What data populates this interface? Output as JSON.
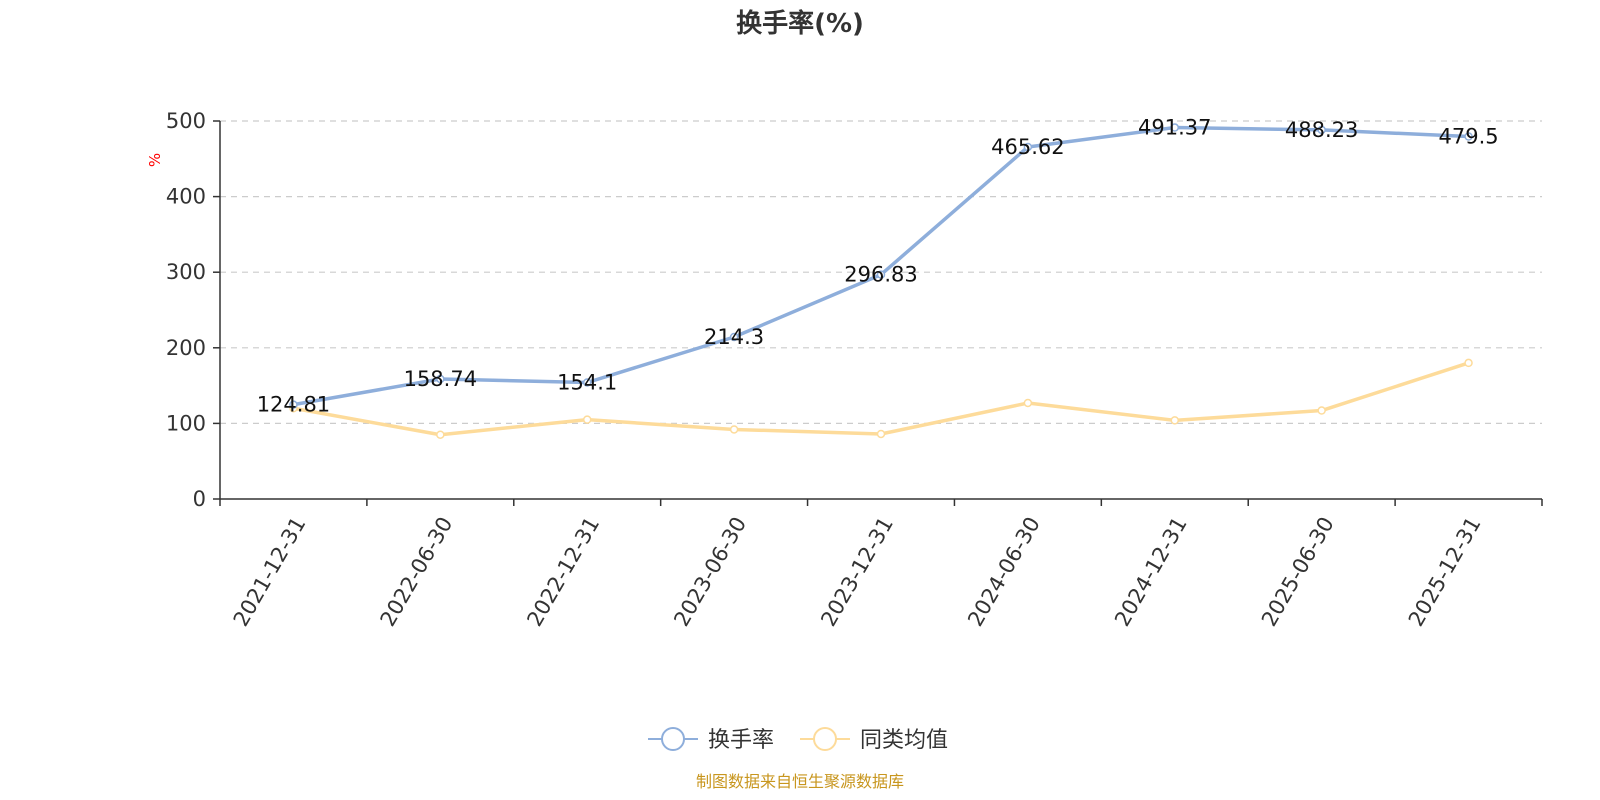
{
  "chart_data": {
    "type": "line",
    "title": "换手率(%)",
    "ylabel": "%",
    "xlabel": "",
    "ylim": [
      0,
      500
    ],
    "yticks": [
      0,
      100,
      200,
      300,
      400,
      500
    ],
    "categories": [
      "2021-12-31",
      "2022-06-30",
      "2022-12-31",
      "2023-06-30",
      "2023-12-31",
      "2024-06-30",
      "2024-12-31",
      "2025-06-30",
      "2025-12-31"
    ],
    "series": [
      {
        "name": "换手率",
        "color": "#8eaedb",
        "values": [
          124.81,
          158.74,
          154.1,
          214.3,
          296.83,
          465.62,
          491.37,
          488.23,
          479.5
        ],
        "labels": [
          "124.81",
          "158.74",
          "154.1",
          "214.3",
          "296.83",
          "465.62",
          "491.37",
          "488.23",
          "479.5"
        ]
      },
      {
        "name": "同类均值",
        "color": "#fddb9a",
        "values": [
          120,
          85,
          105,
          92,
          86,
          127,
          104,
          117,
          180
        ]
      }
    ],
    "grid": true,
    "legend_position": "bottom-center"
  },
  "source_text": "制图数据来自恒生聚源数据库",
  "colors": {
    "axis": "#333333",
    "grid": "#cccccc",
    "unit": "#ff0000",
    "source": "#c8961e"
  }
}
